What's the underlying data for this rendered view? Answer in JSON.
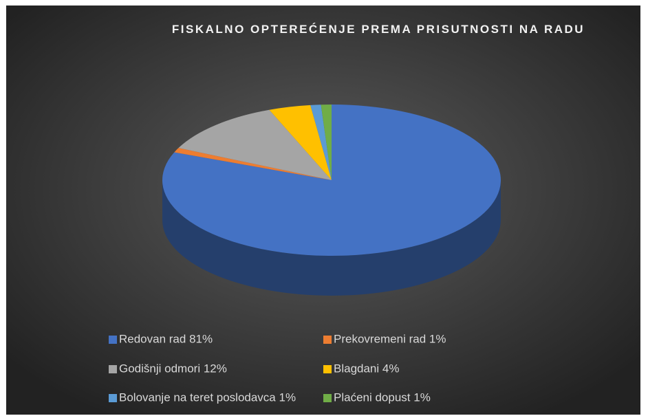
{
  "chart_data": {
    "type": "pie3d",
    "title": "FISKALNO OPTEREĆENJE PREMA PRISUTNOSTI NA RADU",
    "categories": [
      "Redovan rad 81%",
      "Prekovremeni rad 1%",
      "Godišnji odmori 12%",
      "Blagdani 4%",
      "Bolovanje na teret poslodavca 1%",
      "Plaćeni dopust 1%"
    ],
    "values": [
      81,
      1,
      12,
      4,
      1,
      1
    ],
    "colors": [
      "#4472c4",
      "#ed7d31",
      "#a5a5a5",
      "#ffc000",
      "#5b9bd5",
      "#70ad47"
    ],
    "legend": "bottom"
  }
}
